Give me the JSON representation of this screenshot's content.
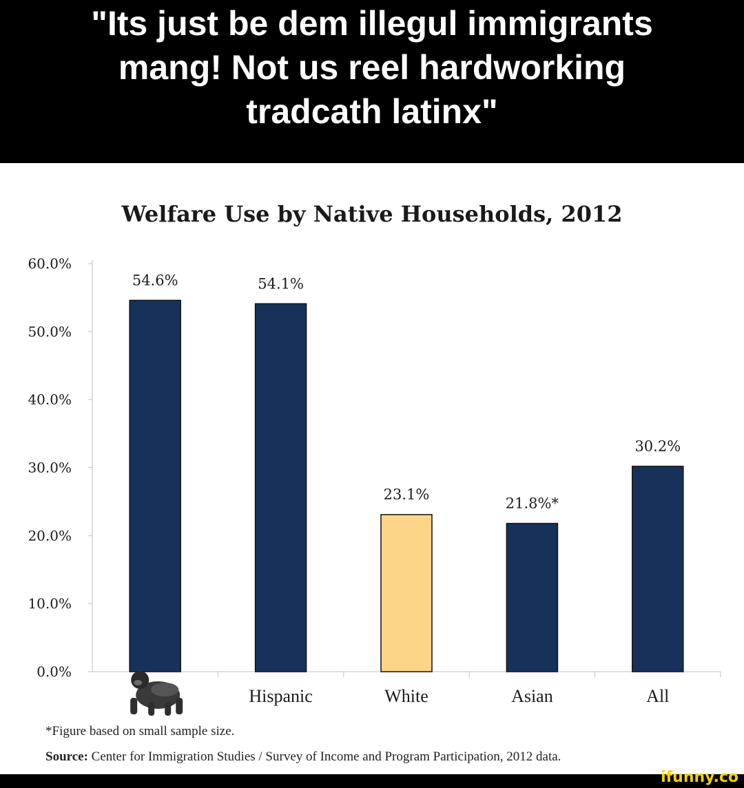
{
  "caption": {
    "lines": [
      "\"Its just be dem illegul immigrants",
      "mang! Not us reel hardworking",
      "tradcath latinx\""
    ]
  },
  "chart_data": {
    "type": "bar",
    "title": "Welfare Use by Native Households, 2012",
    "categories": [
      "",
      "Hispanic",
      "White",
      "Asian",
      "All"
    ],
    "values": [
      54.6,
      54.1,
      23.1,
      21.8,
      30.2
    ],
    "value_labels": [
      "54.6%",
      "54.1%",
      "23.1%",
      "21.8%*",
      "30.2%"
    ],
    "bar_colors": [
      "#17325a",
      "#17325a",
      "#fbd488",
      "#17325a",
      "#17325a"
    ],
    "yticks": [
      "0.0%",
      "10.0%",
      "20.0%",
      "30.0%",
      "40.0%",
      "50.0%",
      "60.0%"
    ],
    "ylim": [
      0,
      60
    ],
    "grid": false,
    "first_category_icon": "gorilla-icon"
  },
  "footnote": "*Figure based on small sample size.",
  "source": {
    "label": "Source:",
    "text": " Center for Immigration Studies / Survey of Income and Program Participation, 2012 data."
  },
  "watermark": "ifunny.co"
}
